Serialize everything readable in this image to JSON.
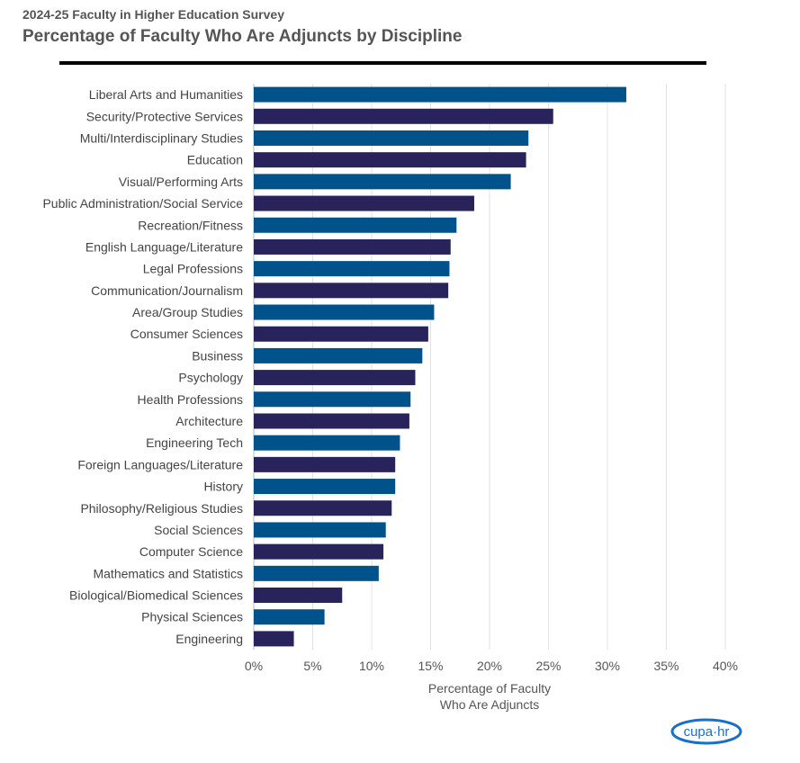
{
  "header": {
    "subtitle": "2024-25 Faculty in Higher Education Survey",
    "title": "Percentage of Faculty Who Are Adjuncts by Discipline"
  },
  "logo_text": "cupa-hr",
  "chart_data": {
    "type": "bar",
    "orientation": "horizontal",
    "title": "Percentage of Faculty Who Are Adjuncts by Discipline",
    "xlabel": "Percentage of Faculty Who Are Adjuncts",
    "xlabel_lines": [
      "Percentage of Faculty",
      "Who Are Adjuncts"
    ],
    "xlim": [
      0,
      40
    ],
    "xticks": [
      "0%",
      "5%",
      "10%",
      "15%",
      "20%",
      "25%",
      "30%",
      "35%",
      "40%"
    ],
    "grid": true,
    "colors": [
      "#00528a",
      "#29235c"
    ],
    "categories": [
      "Liberal Arts and Humanities",
      "Security/Protective Services",
      "Multi/Interdisciplinary Studies",
      "Education",
      "Visual/Performing Arts",
      "Public Administration/Social Service",
      "Recreation/Fitness",
      "English Language/Literature",
      "Legal Professions",
      "Communication/Journalism",
      "Area/Group Studies",
      "Consumer Sciences",
      "Business",
      "Psychology",
      "Health Professions",
      "Architecture",
      "Engineering Tech",
      "Foreign Languages/Literature",
      "History",
      "Philosophy/Religious Studies",
      "Social Sciences",
      "Computer Science",
      "Mathematics and Statistics",
      "Biological/Biomedical Sciences",
      "Physical Sciences",
      "Engineering"
    ],
    "values": [
      31.6,
      25.4,
      23.3,
      23.1,
      21.8,
      18.7,
      17.2,
      16.7,
      16.6,
      16.5,
      15.3,
      14.8,
      14.3,
      13.7,
      13.3,
      13.2,
      12.4,
      12.0,
      12.0,
      11.7,
      11.2,
      11.0,
      10.6,
      7.5,
      6.0,
      3.4
    ]
  }
}
